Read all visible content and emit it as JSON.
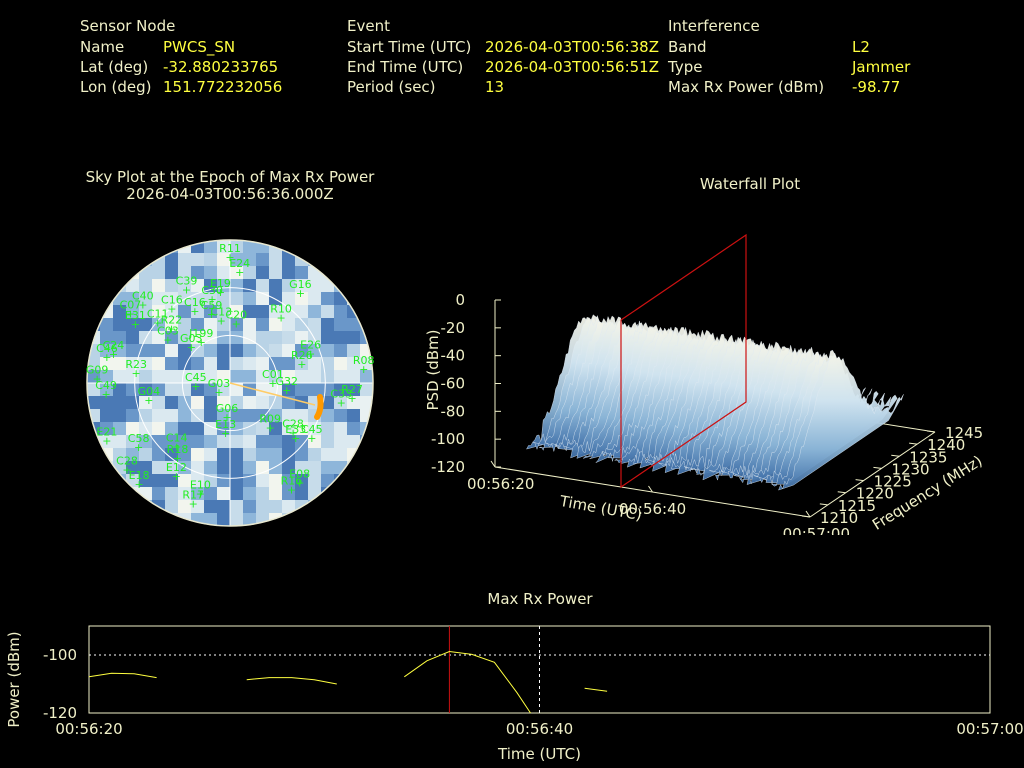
{
  "sensor": {
    "heading": "Sensor Node",
    "rows": [
      {
        "label": "Name",
        "value": "PWCS_SN"
      },
      {
        "label": "Lat (deg)",
        "value": "-32.880233765"
      },
      {
        "label": "Lon (deg)",
        "value": "151.772232056"
      }
    ]
  },
  "event": {
    "heading": "Event",
    "rows": [
      {
        "label": "Start Time (UTC)",
        "value": "2026-04-03T00:56:38Z"
      },
      {
        "label": "End Time (UTC)",
        "value": "2026-04-03T00:56:51Z"
      },
      {
        "label": "Period (sec)",
        "value": "13"
      }
    ]
  },
  "interference": {
    "heading": "Interference",
    "rows": [
      {
        "label": "Band",
        "value": "L2"
      },
      {
        "label": "Type",
        "value": "Jammer"
      },
      {
        "label": "Max Rx Power (dBm)",
        "value": "-98.77"
      }
    ]
  },
  "colors": {
    "label": "#f0f0c8",
    "value": "#ffff40",
    "sat": "#22ee22",
    "red": "#cc1111",
    "orange": "#ff9900"
  },
  "chart_data": [
    {
      "type": "polar",
      "title": "Sky Plot at the Epoch of Max Rx Power",
      "subtitle": "2026-04-03T00:56:36.000Z",
      "satellites": [
        {
          "id": "R11",
          "az": 0,
          "el": 88
        },
        {
          "id": "E24",
          "az": 5,
          "el": 78
        },
        {
          "id": "C39",
          "az": -25,
          "el": 72
        },
        {
          "id": "C40",
          "az": -48,
          "el": 82
        },
        {
          "id": "E19",
          "az": -6,
          "el": 64
        },
        {
          "id": "C30",
          "az": -12,
          "el": 60
        },
        {
          "id": "C07",
          "az": -55,
          "el": 85
        },
        {
          "id": "C16",
          "az": -38,
          "el": 66
        },
        {
          "id": "C16",
          "az": -26,
          "el": 56
        },
        {
          "id": "E31",
          "az": -58,
          "el": 78
        },
        {
          "id": "C11",
          "az": -50,
          "el": 66
        },
        {
          "id": "R22",
          "az": -47,
          "el": 56
        },
        {
          "id": "C59",
          "az": -15,
          "el": 50
        },
        {
          "id": "C13",
          "az": -8,
          "el": 44
        },
        {
          "id": "G16",
          "az": 38,
          "el": 80
        },
        {
          "id": "R10",
          "az": 38,
          "el": 58
        },
        {
          "id": "C03",
          "az": -55,
          "el": 53
        },
        {
          "id": "G03",
          "az": -47,
          "el": 37
        },
        {
          "id": "J199",
          "az": -35,
          "el": 35
        },
        {
          "id": "C20",
          "az": 6,
          "el": 42
        },
        {
          "id": "E26",
          "az": 70,
          "el": 60
        },
        {
          "id": "R26",
          "az": 75,
          "el": 52
        },
        {
          "id": "C46",
          "az": -78,
          "el": 88
        },
        {
          "id": "C24",
          "az": -76,
          "el": 84
        },
        {
          "id": "G09",
          "az": -88,
          "el": 93
        },
        {
          "id": "C49",
          "az": -95,
          "el": 87
        },
        {
          "id": "R23",
          "az": -84,
          "el": 66
        },
        {
          "id": "G04",
          "az": -102,
          "el": 58
        },
        {
          "id": "C45",
          "az": -95,
          "el": 24
        },
        {
          "id": "G03",
          "az": -130,
          "el": 10
        },
        {
          "id": "R08",
          "az": 84,
          "el": 94
        },
        {
          "id": "R27",
          "az": 97,
          "el": 86
        },
        {
          "id": "C33",
          "az": 100,
          "el": 79
        },
        {
          "id": "G32",
          "az": 97,
          "el": 40
        },
        {
          "id": "C01",
          "az": 90,
          "el": 30
        },
        {
          "id": "R09",
          "az": 138,
          "el": 42
        },
        {
          "id": "C28",
          "az": 128,
          "el": 56
        },
        {
          "id": "E33",
          "az": 130,
          "el": 60
        },
        {
          "id": "C45",
          "az": 124,
          "el": 69
        },
        {
          "id": "E08",
          "az": 145,
          "el": 85
        },
        {
          "id": "R16",
          "az": 150,
          "el": 86
        },
        {
          "id": "E21",
          "az": -115,
          "el": 95
        },
        {
          "id": "C58",
          "az": -125,
          "el": 78
        },
        {
          "id": "C28",
          "az": -130,
          "el": 94
        },
        {
          "id": "E18",
          "az": -138,
          "el": 95
        },
        {
          "id": "C14",
          "az": -140,
          "el": 58
        },
        {
          "id": "R18",
          "az": -145,
          "el": 64
        },
        {
          "id": "E12",
          "az": -150,
          "el": 75
        },
        {
          "id": "E10",
          "az": -165,
          "el": 80
        },
        {
          "id": "R17",
          "az": -163,
          "el": 88
        },
        {
          "id": "E13",
          "az": -175,
          "el": 35
        },
        {
          "id": "G06",
          "az": -175,
          "el": 24
        }
      ],
      "highlight_track_color": "#ff9900"
    },
    {
      "type": "surface",
      "title": "Waterfall Plot",
      "xlabel": "Time (UTC)",
      "ylabel": "Frequency (MHz)",
      "zlabel": "PSD (dBm)",
      "x_ticks": [
        "00:56:20",
        "00:56:40",
        "00:57:00"
      ],
      "y_ticks": [
        "1210",
        "1215",
        "1220",
        "1225",
        "1230",
        "1235",
        "1240",
        "1245"
      ],
      "z_ticks": [
        "0",
        "-20",
        "-40",
        "-60",
        "-80",
        "-100",
        "-120"
      ],
      "zlim": [
        -120,
        0
      ],
      "xlim": [
        "00:56:20",
        "00:57:00"
      ],
      "ylim": [
        1210,
        1245
      ]
    },
    {
      "type": "line",
      "title": "Max Rx Power",
      "xlabel": "Time (UTC)",
      "ylabel": "Power (dBm)",
      "x_ticks": [
        "00:56:20",
        "00:56:40",
        "00:57:00"
      ],
      "y_ticks": [
        "-100",
        "-120"
      ],
      "xlim": [
        0,
        40
      ],
      "ylim": [
        -120,
        -90
      ],
      "marker_x": 16,
      "cursor_x": 20,
      "segments": [
        [
          [
            0,
            -107.5
          ],
          [
            1,
            -106.3
          ],
          [
            2,
            -106.5
          ],
          [
            3,
            -107.8
          ]
        ],
        [
          [
            7,
            -108.5
          ],
          [
            8,
            -107.8
          ],
          [
            9,
            -107.8
          ],
          [
            10,
            -108.5
          ],
          [
            11,
            -110
          ]
        ],
        [
          [
            14,
            -107.5
          ],
          [
            15,
            -102
          ],
          [
            16,
            -98.8
          ],
          [
            17,
            -99.8
          ],
          [
            18,
            -102.5
          ],
          [
            19,
            -113
          ],
          [
            19.6,
            -120
          ]
        ],
        [
          [
            22,
            -111.5
          ],
          [
            23,
            -112.5
          ]
        ]
      ]
    }
  ]
}
